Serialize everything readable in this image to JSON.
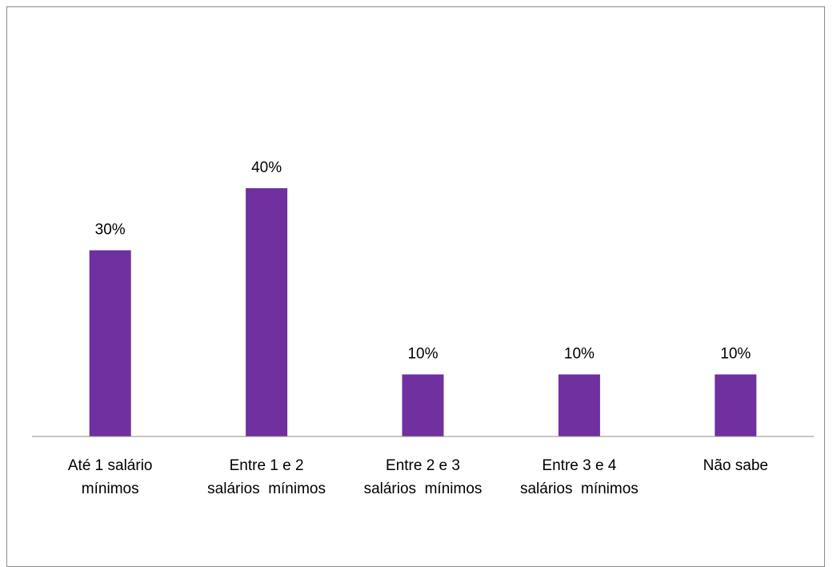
{
  "chart_data": {
    "type": "bar",
    "categories": [
      [
        "Até 1 salário",
        "mínimos"
      ],
      [
        "Entre 1 e 2",
        "salários  mínimos"
      ],
      [
        "Entre 2 e 3",
        "salários  mínimos"
      ],
      [
        "Entre 3 e 4",
        "salários  mínimos"
      ],
      [
        "Não sabe"
      ]
    ],
    "values": [
      30,
      40,
      10,
      10,
      10
    ],
    "value_labels": [
      "30%",
      "40%",
      "10%",
      "10%",
      "10%"
    ],
    "unit": "%",
    "title": "",
    "xlabel": "",
    "ylabel": "",
    "ylim": [
      0,
      70
    ],
    "grid": false,
    "legend": "none",
    "bar_color": "#7030A0",
    "axis_color": "#8c8c8c"
  }
}
